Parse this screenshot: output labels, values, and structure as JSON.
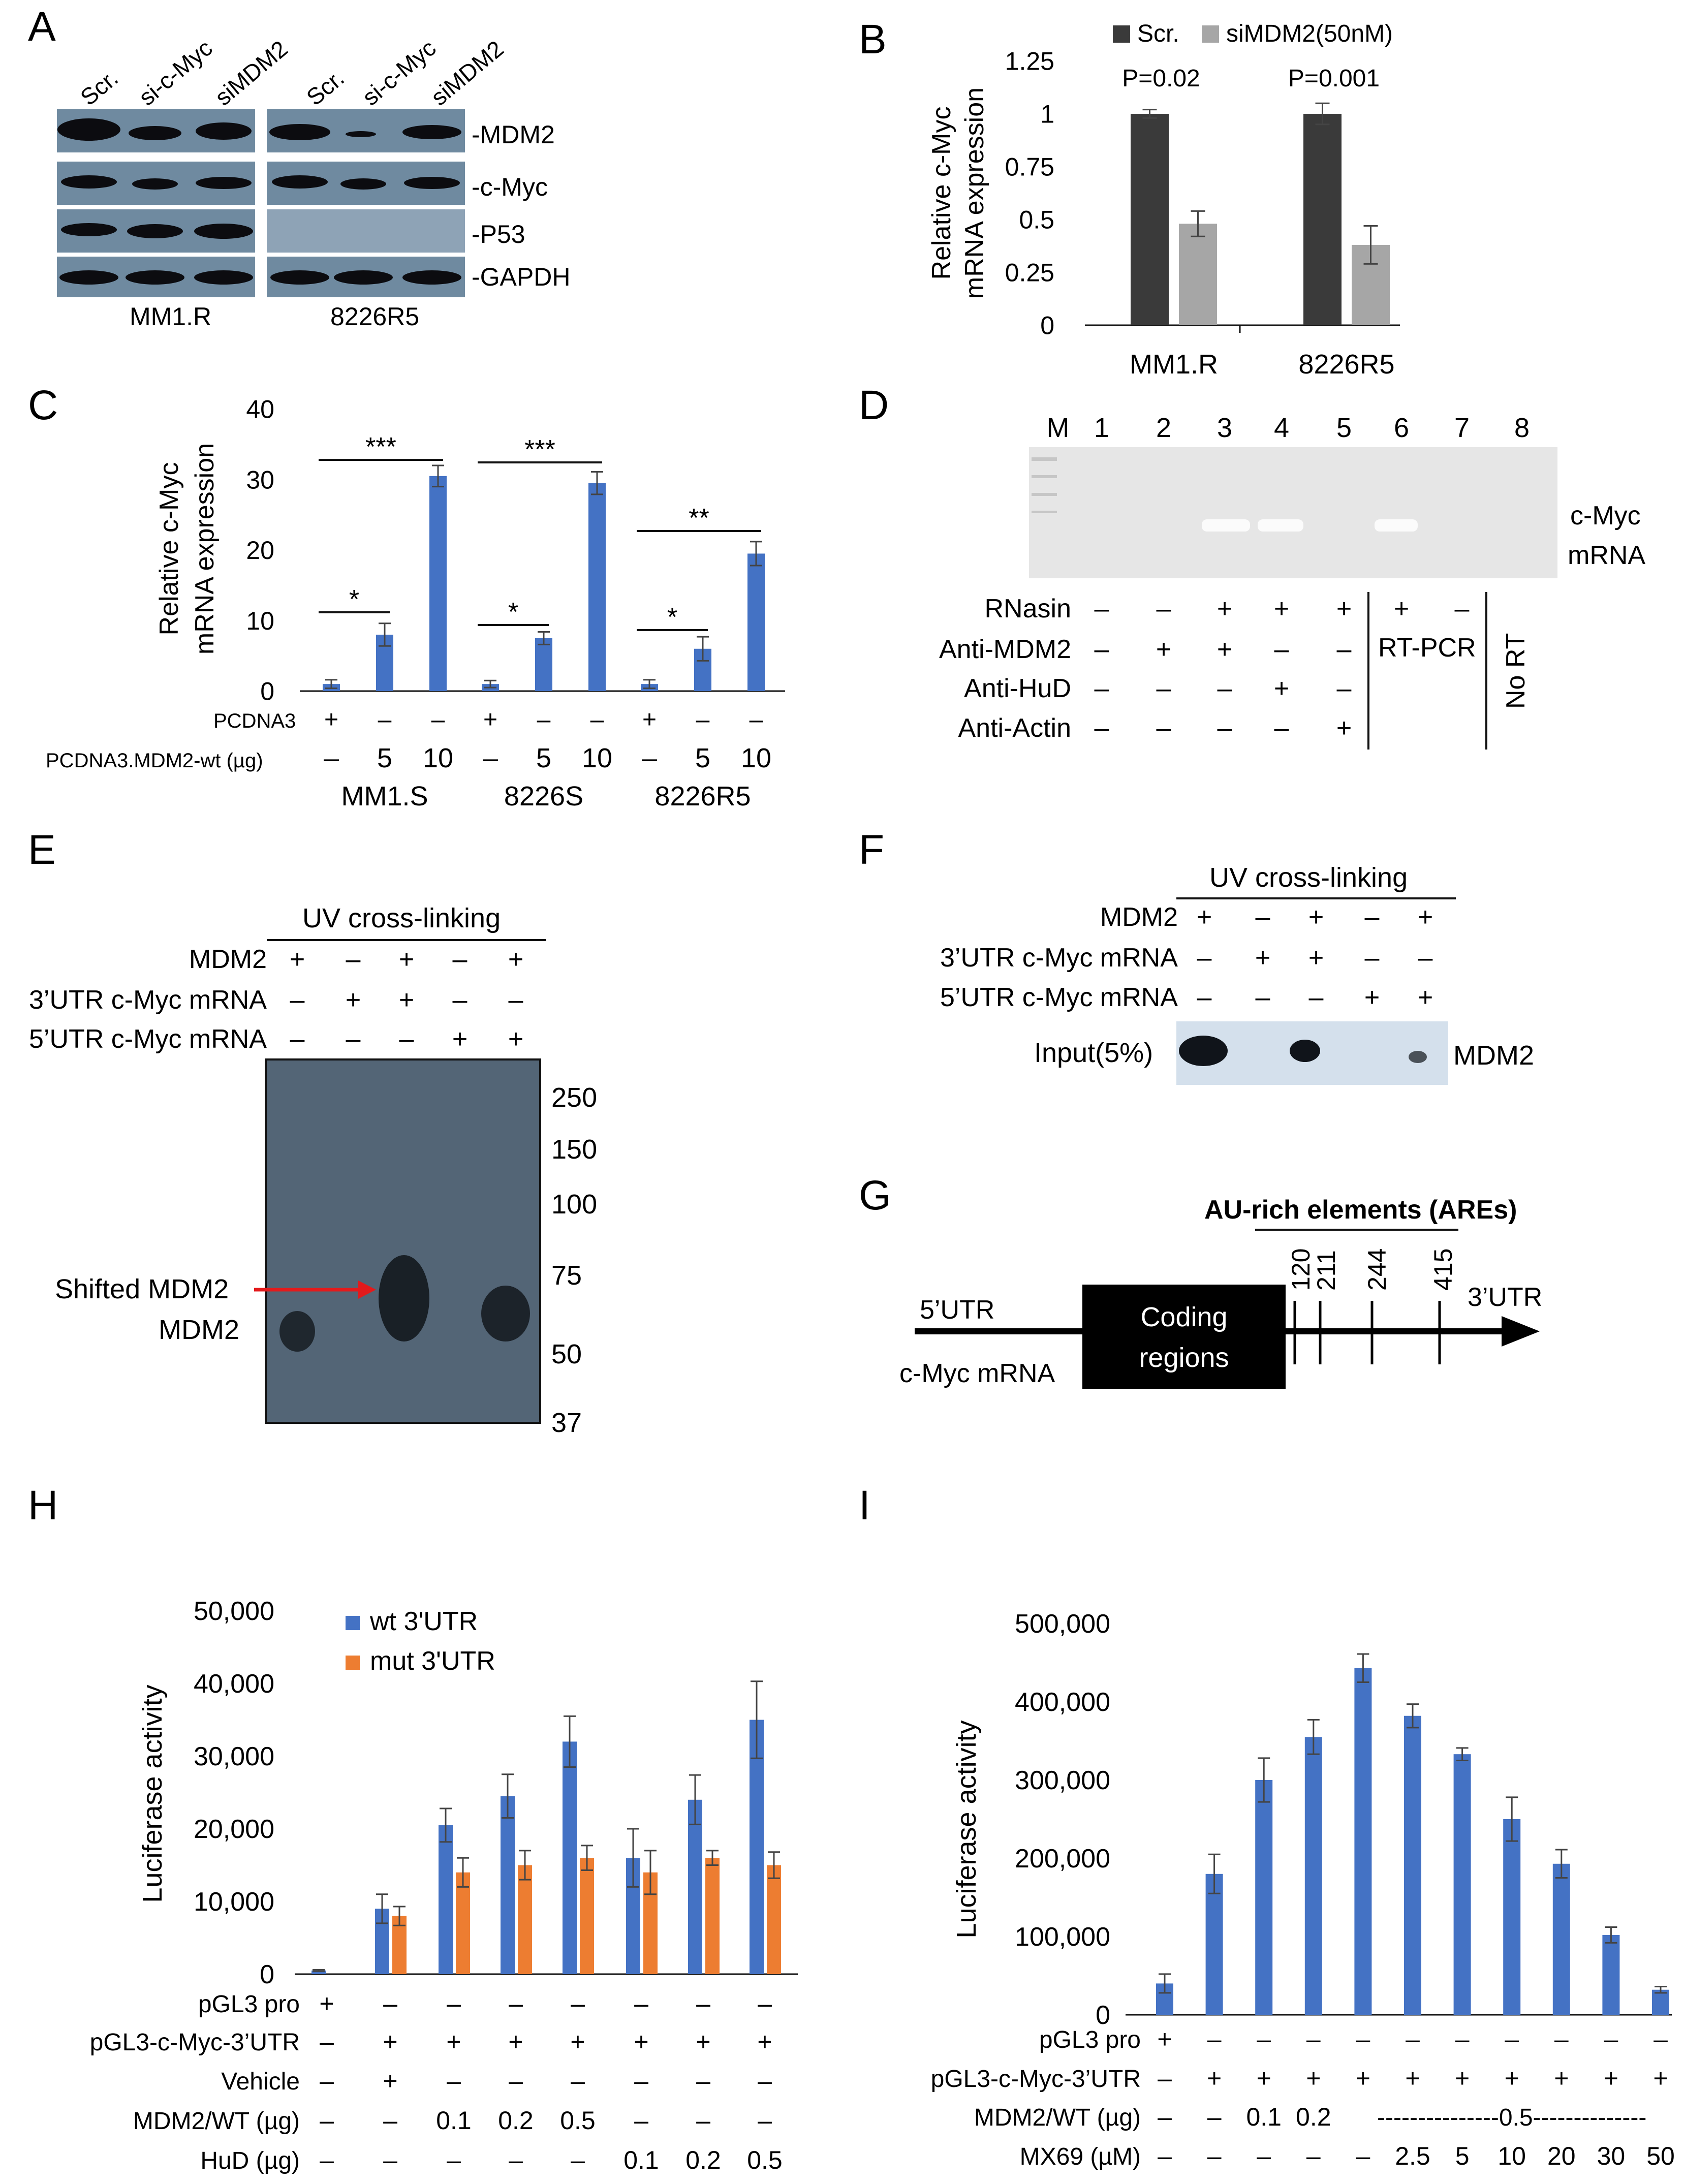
{
  "panel_labels": {
    "A": "A",
    "B": "B",
    "C": "C",
    "D": "D",
    "E": "E",
    "F": "F",
    "G": "G",
    "H": "H",
    "I": "I"
  },
  "colors": {
    "dark_bar": "#3a3a3a",
    "light_bar": "#a6a6a6",
    "blue": "#4472c4",
    "orange": "#ed7d31",
    "arrow": "#e31a1c",
    "gel": "#e8e8e8",
    "blot_bg": "#5a6a78",
    "film": "#d9e4ef"
  },
  "panel_a": {
    "lane_labels": [
      "Scr.",
      "si-c-Myc",
      "siMDM2",
      "Scr.",
      "si-c-Myc",
      "siMDM2"
    ],
    "row_labels": [
      "-MDM2",
      "-c-Myc",
      "-P53",
      "-GAPDH"
    ],
    "groups": [
      "MM1.R",
      "8226R5"
    ]
  },
  "panel_d": {
    "lanes": [
      "M",
      "1",
      "2",
      "3",
      "4",
      "5",
      "6",
      "7",
      "8"
    ],
    "band_label_1": "c-Myc",
    "band_label_2": "mRNA",
    "rows": [
      {
        "label": "RNasin",
        "signs": [
          "–",
          "–",
          "+",
          "+",
          "+",
          "+",
          "–"
        ]
      },
      {
        "label": "Anti-MDM2",
        "signs": [
          "–",
          "+",
          "+",
          "–",
          "–"
        ]
      },
      {
        "label": "Anti-HuD",
        "signs": [
          "–",
          "–",
          "–",
          "+",
          "–"
        ]
      },
      {
        "label": "Anti-Actin",
        "signs": [
          "–",
          "–",
          "–",
          "–",
          "+"
        ]
      }
    ],
    "rtpcr": "RT-PCR",
    "nort": "No RT"
  },
  "panel_e": {
    "title": "UV cross-linking",
    "rows": [
      {
        "label": "MDM2",
        "signs": [
          "+",
          "–",
          "+",
          "–",
          "+"
        ]
      },
      {
        "label": "3’UTR c-Myc mRNA",
        "signs": [
          "–",
          "+",
          "+",
          "–",
          "–"
        ]
      },
      {
        "label": "5’UTR c-Myc mRNA",
        "signs": [
          "–",
          "–",
          "–",
          "+",
          "+"
        ]
      }
    ],
    "markers": [
      "250",
      "150",
      "100",
      "75",
      "50",
      "37"
    ],
    "shifted": "Shifted MDM2",
    "mdm2": "MDM2"
  },
  "panel_f": {
    "title": "UV cross-linking",
    "rows": [
      {
        "label": "MDM2",
        "signs": [
          "+",
          "–",
          "+",
          "–",
          "+"
        ]
      },
      {
        "label": "3’UTR c-Myc mRNA",
        "signs": [
          "–",
          "+",
          "+",
          "–",
          "–"
        ]
      },
      {
        "label": "5’UTR c-Myc mRNA",
        "signs": [
          "–",
          "–",
          "–",
          "+",
          "+"
        ]
      }
    ],
    "input": "Input(5%)",
    "mdm2": "MDM2"
  },
  "panel_g": {
    "title": "AU-rich elements (AREs)",
    "positions": [
      "120",
      "211",
      "244",
      "415"
    ],
    "utr5": "5’UTR",
    "utr3": "3’UTR",
    "coding_1": "Coding",
    "coding_2": "regions",
    "mrna": "c-Myc mRNA"
  },
  "chart_data": [
    {
      "id": "B",
      "type": "bar",
      "categories": [
        "MM1.R",
        "8226R5"
      ],
      "series": [
        {
          "name": "Scr.",
          "values": [
            1.0,
            1.0
          ],
          "errors": [
            0.02,
            0.05
          ]
        },
        {
          "name": "siMDM2(50nM)",
          "values": [
            0.48,
            0.38
          ],
          "errors": [
            0.06,
            0.09
          ]
        }
      ],
      "ylabel_1": "Relative c-Myc",
      "ylabel_2": "mRNA expression",
      "ylim": [
        0,
        1.25
      ],
      "yticks": [
        "0",
        "0.25",
        "0.5",
        "0.75",
        "1",
        "1.25"
      ],
      "pvalues": [
        "P=0.02",
        "P=0.001"
      ],
      "legend_position": "top"
    },
    {
      "id": "C",
      "type": "bar",
      "values": [
        1,
        8,
        30.5,
        1,
        7.5,
        29.5,
        1,
        6,
        19.5
      ],
      "errors": [
        0.6,
        1.6,
        1.5,
        0.5,
        0.9,
        1.6,
        0.6,
        1.7,
        1.7
      ],
      "ylabel_1": "Relative c-Myc",
      "ylabel_2": "mRNA expression",
      "ylim": [
        0,
        40
      ],
      "yticks": [
        "0",
        "10",
        "20",
        "30",
        "40"
      ],
      "row1_label": "PCDNA3",
      "row1_signs": [
        "+",
        "–",
        "–",
        "+",
        "–",
        "–",
        "+",
        "–",
        "–"
      ],
      "row2_label": "PCDNA3.MDM2-wt (µg)",
      "row2_vals": [
        "–",
        "5",
        "10",
        "–",
        "5",
        "10",
        "–",
        "5",
        "10"
      ],
      "groups": [
        "MM1.S",
        "8226S",
        "8226R5"
      ],
      "sig": [
        {
          "short": "*",
          "long": "***"
        },
        {
          "short": "*",
          "long": "***"
        },
        {
          "short": "*",
          "long": "**"
        }
      ]
    },
    {
      "id": "H",
      "type": "bar",
      "series": [
        {
          "name": "wt 3'UTR",
          "values": [
            500,
            9000,
            20500,
            24500,
            32000,
            16000,
            24000,
            35000
          ],
          "errors": [
            100,
            2000,
            2300,
            3000,
            3500,
            4000,
            3400,
            5300
          ]
        },
        {
          "name": "mut 3'UTR",
          "values": [
            null,
            8000,
            14000,
            15000,
            16000,
            14000,
            16000,
            15000
          ],
          "errors": [
            null,
            1300,
            2000,
            2000,
            1700,
            3000,
            1000,
            1800
          ]
        }
      ],
      "ylabel": "Luciferase activity",
      "ylim": [
        0,
        50000
      ],
      "yticks": [
        "0",
        "10,000",
        "20,000",
        "30,000",
        "40,000",
        "50,000"
      ],
      "legend_position": "top",
      "rows": [
        {
          "label": "pGL3 pro",
          "vals": [
            "+",
            "–",
            "–",
            "–",
            "–",
            "–",
            "–",
            "–"
          ]
        },
        {
          "label": "pGL3-c-Myc-3’UTR",
          "vals": [
            "–",
            "+",
            "+",
            "+",
            "+",
            "+",
            "+",
            "+"
          ]
        },
        {
          "label": "Vehicle",
          "vals": [
            "–",
            "+",
            "–",
            "–",
            "–",
            "–",
            "–",
            "–"
          ]
        },
        {
          "label": "MDM2/WT (µg)",
          "vals": [
            "–",
            "–",
            "0.1",
            "0.2",
            "0.5",
            "–",
            "–",
            "–"
          ]
        },
        {
          "label": "HuD (µg)",
          "vals": [
            "–",
            "–",
            "–",
            "–",
            "–",
            "0.1",
            "0.2",
            "0.5"
          ]
        }
      ]
    },
    {
      "id": "I",
      "type": "bar",
      "values": [
        40000,
        180000,
        300000,
        355000,
        443000,
        382000,
        333000,
        250000,
        193000,
        102000,
        32000
      ],
      "errors": [
        12000,
        25000,
        28000,
        22000,
        18000,
        15000,
        8000,
        28000,
        18000,
        10000,
        4000
      ],
      "ylabel": "Luciferase activity",
      "ylim": [
        0,
        500000
      ],
      "yticks": [
        "0",
        "100,000",
        "200,000",
        "300,000",
        "400,000",
        "500,000"
      ],
      "rows": [
        {
          "label": "pGL3 pro",
          "vals": [
            "+",
            "–",
            "–",
            "–",
            "–",
            "–",
            "–",
            "–",
            "–",
            "–",
            "–"
          ]
        },
        {
          "label": "pGL3-c-Myc-3’UTR",
          "vals": [
            "–",
            "+",
            "+",
            "+",
            "+",
            "+",
            "+",
            "+",
            "+",
            "+",
            "+"
          ]
        },
        {
          "label": "MDM2/WT (µg)",
          "vals": [
            "–",
            "–",
            "0.1",
            "0.2",
            "",
            "",
            "",
            "",
            "",
            "",
            ""
          ]
        },
        {
          "label": "MX69 (µM)",
          "vals": [
            "–",
            "–",
            "–",
            "–",
            "–",
            "2.5",
            "5",
            "10",
            "20",
            "30",
            "50"
          ]
        }
      ],
      "mdm2_dash": "---------------0.5--------------"
    }
  ]
}
